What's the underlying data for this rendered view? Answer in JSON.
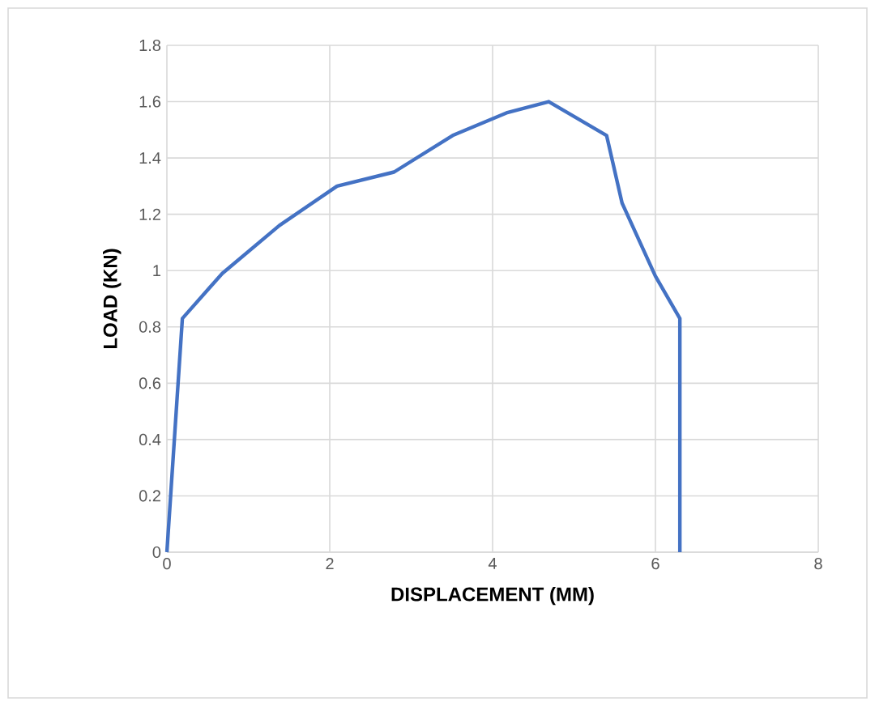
{
  "chart_data": {
    "type": "line",
    "xlabel": "DISPLACEMENT (MM)",
    "ylabel": "LOAD (KN)",
    "x": [
      0,
      0.19,
      0.68,
      1.38,
      2.09,
      2.79,
      3.51,
      4.17,
      4.69,
      5.4,
      5.59,
      6.0,
      6.3,
      6.3
    ],
    "series": [
      {
        "color": "#4472c4",
        "values": [
          0,
          0.83,
          0.99,
          1.16,
          1.3,
          1.35,
          1.48,
          1.56,
          1.6,
          1.48,
          1.24,
          0.98,
          0.83,
          0
        ]
      }
    ],
    "xlim": [
      0,
      8
    ],
    "xticks": [
      0,
      2,
      4,
      6,
      8
    ],
    "ylim": [
      0,
      1.8
    ],
    "yticks": [
      0,
      0.2,
      0.4,
      0.6,
      0.8,
      1,
      1.2,
      1.4,
      1.6,
      1.8
    ],
    "grid": true,
    "marker": "none",
    "line_style": "solid"
  }
}
